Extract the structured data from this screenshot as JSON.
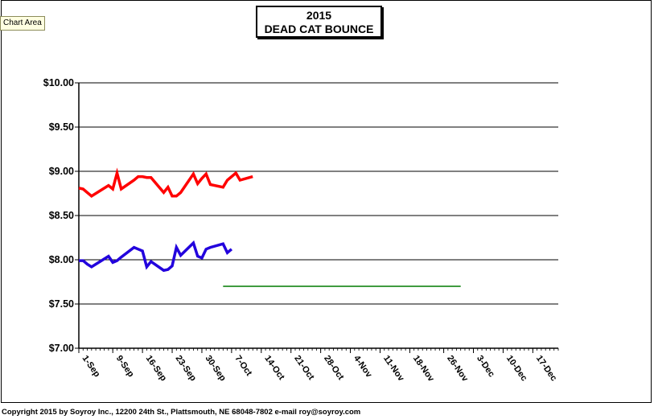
{
  "tooltip": "Chart Area",
  "footer": "Copyright 2015 by Soyroy Inc., 12200 24th St., Plattsmouth, NE 68048-7802 e-mail roy@soyroy.com",
  "colors": {
    "red_series": "#ff0000",
    "blue_series": "#2200dd",
    "green_series": "#007a00"
  },
  "chart_data": {
    "type": "line",
    "title": "2015",
    "subtitle": "DEAD CAT BOUNCE",
    "ylim": [
      7.0,
      10.0
    ],
    "yticks": [
      7.0,
      7.5,
      8.0,
      8.5,
      9.0,
      9.5,
      10.0
    ],
    "ytick_labels": [
      "$7.00",
      "$7.50",
      "$8.00",
      "$8.50",
      "$9.00",
      "$9.50",
      "$10.00"
    ],
    "x_start": "2015-09-01",
    "x_end": "2015-12-23",
    "xticks": [
      "2015-09-01",
      "2015-09-09",
      "2015-09-16",
      "2015-09-23",
      "2015-09-30",
      "2015-10-07",
      "2015-10-14",
      "2015-10-21",
      "2015-10-28",
      "2015-11-04",
      "2015-11-11",
      "2015-11-18",
      "2015-11-26",
      "2015-12-03",
      "2015-12-10",
      "2015-12-17"
    ],
    "xtick_labels": [
      "1-Sep",
      "9-Sep",
      "16-Sep",
      "23-Sep",
      "30-Sep",
      "7-Oct",
      "14-Oct",
      "21-Oct",
      "28-Oct",
      "4-Nov",
      "11-Nov",
      "18-Nov",
      "26-Nov",
      "3-Dec",
      "10-Dec",
      "17-Dec"
    ],
    "grid": "horizontal",
    "series": [
      {
        "color": "#ff0000",
        "points": [
          [
            "2015-09-01",
            8.81
          ],
          [
            "2015-09-02",
            8.8
          ],
          [
            "2015-09-03",
            8.76
          ],
          [
            "2015-09-04",
            8.72
          ],
          [
            "2015-09-08",
            8.84
          ],
          [
            "2015-09-09",
            8.8
          ],
          [
            "2015-09-10",
            8.98
          ],
          [
            "2015-09-11",
            8.8
          ],
          [
            "2015-09-14",
            8.9
          ],
          [
            "2015-09-15",
            8.94
          ],
          [
            "2015-09-16",
            8.94
          ],
          [
            "2015-09-17",
            8.93
          ],
          [
            "2015-09-18",
            8.93
          ],
          [
            "2015-09-21",
            8.76
          ],
          [
            "2015-09-22",
            8.82
          ],
          [
            "2015-09-23",
            8.72
          ],
          [
            "2015-09-24",
            8.72
          ],
          [
            "2015-09-25",
            8.76
          ],
          [
            "2015-09-28",
            8.97
          ],
          [
            "2015-09-29",
            8.86
          ],
          [
            "2015-09-30",
            8.92
          ],
          [
            "2015-10-01",
            8.97
          ],
          [
            "2015-10-02",
            8.85
          ],
          [
            "2015-10-05",
            8.82
          ],
          [
            "2015-10-06",
            8.9
          ],
          [
            "2015-10-07",
            8.94
          ],
          [
            "2015-10-08",
            8.98
          ],
          [
            "2015-10-09",
            8.9
          ],
          [
            "2015-10-12",
            8.94
          ]
        ]
      },
      {
        "color": "#2200dd",
        "points": [
          [
            "2015-09-01",
            7.99
          ],
          [
            "2015-09-02",
            7.99
          ],
          [
            "2015-09-03",
            7.95
          ],
          [
            "2015-09-04",
            7.92
          ],
          [
            "2015-09-08",
            8.04
          ],
          [
            "2015-09-09",
            7.97
          ],
          [
            "2015-09-10",
            7.99
          ],
          [
            "2015-09-11",
            8.03
          ],
          [
            "2015-09-14",
            8.14
          ],
          [
            "2015-09-15",
            8.12
          ],
          [
            "2015-09-16",
            8.1
          ],
          [
            "2015-09-17",
            7.92
          ],
          [
            "2015-09-18",
            7.98
          ],
          [
            "2015-09-21",
            7.88
          ],
          [
            "2015-09-22",
            7.89
          ],
          [
            "2015-09-23",
            7.93
          ],
          [
            "2015-09-24",
            8.14
          ],
          [
            "2015-09-25",
            8.05
          ],
          [
            "2015-09-28",
            8.19
          ],
          [
            "2015-09-29",
            8.04
          ],
          [
            "2015-09-30",
            8.02
          ],
          [
            "2015-10-01",
            8.12
          ],
          [
            "2015-10-02",
            8.14
          ],
          [
            "2015-10-05",
            8.18
          ],
          [
            "2015-10-06",
            8.08
          ],
          [
            "2015-10-07",
            8.12
          ]
        ]
      },
      {
        "color": "#007a00",
        "points": [
          [
            "2015-10-05",
            7.7
          ],
          [
            "2015-11-30",
            7.7
          ]
        ]
      }
    ]
  }
}
